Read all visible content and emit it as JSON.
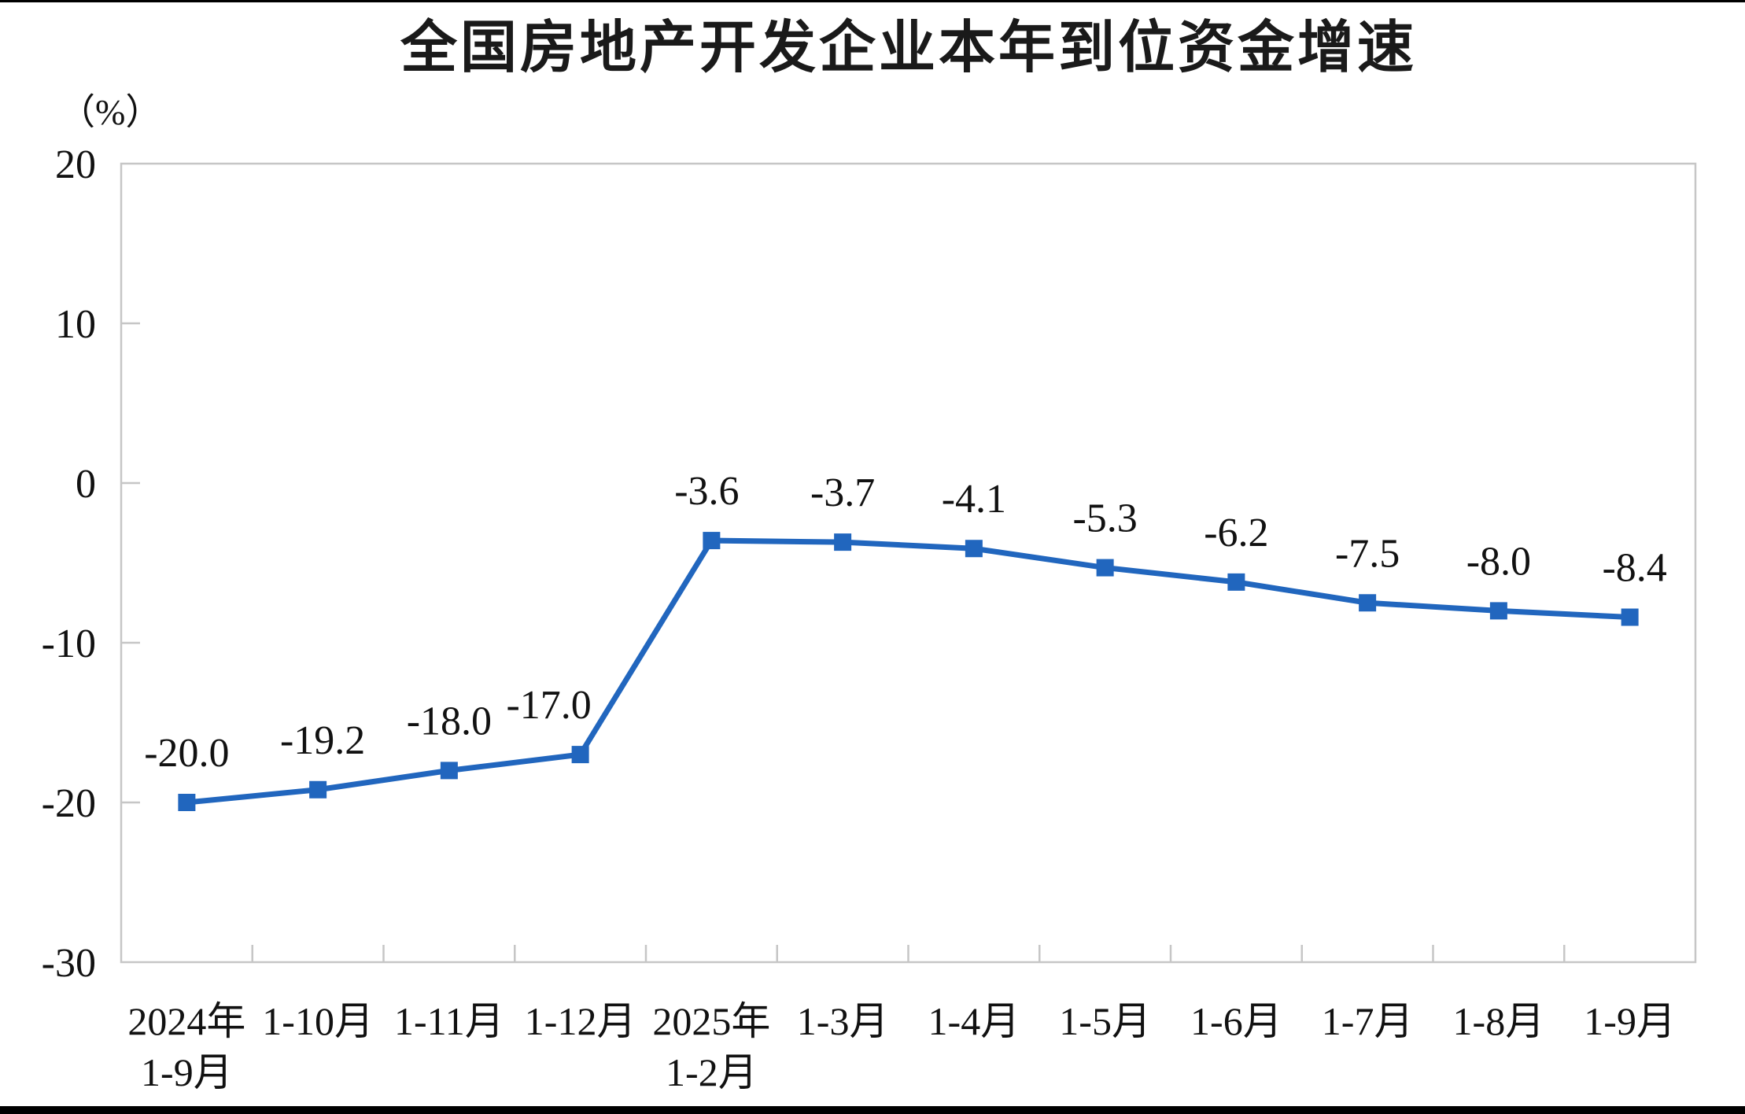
{
  "page": {
    "background_color": "#ffffff",
    "top_border_color": "#000000",
    "bottom_border_color": "#000000"
  },
  "chart": {
    "title": "全国房地产开发企业本年到位资金增速",
    "unit_label": "（%）"
  },
  "chart_data": {
    "type": "line",
    "title": "全国房地产开发企业本年到位资金增速",
    "ylabel": "（%）",
    "xlabel": "",
    "ylim": [
      -30,
      20
    ],
    "yticks": [
      20,
      10,
      0,
      -10,
      -20,
      -30
    ],
    "grid": false,
    "legend": false,
    "categories": [
      "2024年\n1-9月",
      "1-10月",
      "1-11月",
      "1-12月",
      "2025年\n1-2月",
      "1-3月",
      "1-4月",
      "1-5月",
      "1-6月",
      "1-7月",
      "1-8月",
      "1-9月"
    ],
    "values": [
      -20.0,
      -19.2,
      -18.0,
      -17.0,
      -3.6,
      -3.7,
      -4.1,
      -5.3,
      -6.2,
      -7.5,
      -8.0,
      -8.4
    ],
    "data_labels": [
      "-20.0",
      "-19.2",
      "-18.0",
      "-17.0",
      "-3.6",
      "-3.7",
      "-4.1",
      "-5.3",
      "-6.2",
      "-7.5",
      "-8.0",
      "-8.4"
    ],
    "marker": "square",
    "line_color": "#2166BE",
    "frame_color": "#c6c6c6",
    "text_color": "#111111",
    "label_dx": [
      0,
      6,
      0,
      -40,
      -6,
      0,
      0,
      0,
      0,
      0,
      0,
      6
    ],
    "label_dy": -62
  }
}
